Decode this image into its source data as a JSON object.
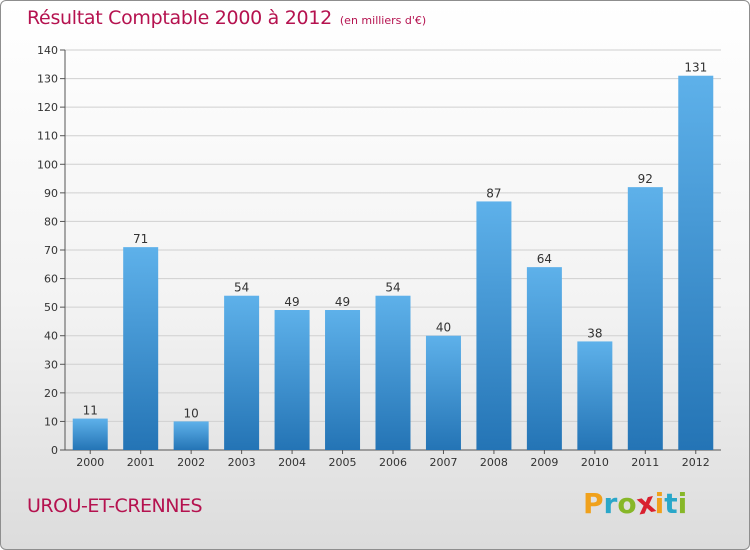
{
  "chart_data": {
    "type": "bar",
    "title": "Résultat Comptable 2000 à 2012",
    "subtitle": "(en milliers d'€)",
    "categories": [
      "2000",
      "2001",
      "2002",
      "2003",
      "2004",
      "2005",
      "2006",
      "2007",
      "2008",
      "2009",
      "2010",
      "2011",
      "2012"
    ],
    "values": [
      11,
      71,
      10,
      54,
      49,
      49,
      54,
      40,
      87,
      64,
      38,
      92,
      131
    ],
    "data_labels": [
      "11",
      "71",
      "10",
      "54",
      "49",
      "49",
      "54",
      "40",
      "87",
      "64",
      "38",
      "92",
      "131"
    ],
    "ylim": [
      0,
      140
    ],
    "yticks": [
      "0",
      "10",
      "20",
      "30",
      "40",
      "50",
      "60",
      "70",
      "80",
      "90",
      "100",
      "110",
      "120",
      "130",
      "140"
    ],
    "grid": true,
    "xlabel": "",
    "ylabel": ""
  },
  "footer": {
    "city": "UROU-ET-CRENNES"
  },
  "logo": {
    "letters": [
      "P",
      "r",
      "o",
      "x",
      "i",
      "t",
      "i"
    ],
    "colors": [
      "#f0a11c",
      "#2aa7c9",
      "#87b728",
      "#d9202e",
      "#f0a11c",
      "#2aa7c9",
      "#87b728"
    ]
  },
  "colors": {
    "bar_top": "#5eb1ea",
    "bar_bottom": "#2474b5",
    "title": "#b5124f",
    "grid": "#d0d0d0"
  }
}
